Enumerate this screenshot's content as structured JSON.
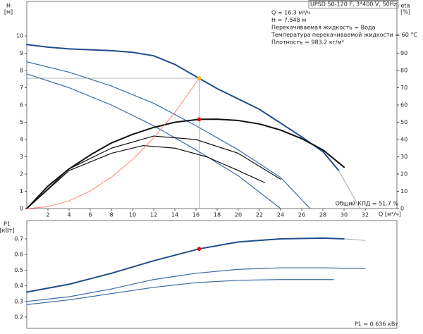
{
  "chart_data": [
    {
      "type": "line",
      "title": "UPSD 50-120 F, 3*400 V, 50Hz",
      "info": [
        "Q = 16.3 м³/ч",
        "H = 7.548 м",
        "Перекачиваемая жидкость = Вода",
        "Температура перекачиваемой жидкости = 60 °C",
        "Плотность = 983.2 кг/м³"
      ],
      "annotation": "Общий КПД = 51.7 %",
      "ylabel": [
        "H",
        "[м]"
      ],
      "y2label": [
        "eta",
        "[%]"
      ],
      "xlabel": "Q [м³/ч]",
      "xlim": [
        0,
        35
      ],
      "xticks": [
        2,
        4,
        6,
        8,
        10,
        12,
        14,
        16,
        18,
        20,
        22,
        24,
        26,
        28,
        30,
        32
      ],
      "ylim": [
        0,
        12
      ],
      "yticks": [
        0,
        1,
        2,
        3,
        4,
        5,
        6,
        7,
        8,
        9,
        10
      ],
      "y2lim": [
        0,
        120
      ],
      "y2ticks": [
        0,
        10,
        20,
        30,
        40,
        50,
        60,
        70,
        80,
        90
      ],
      "grid": false,
      "series": [
        {
          "color": "#1f4e8c",
          "width": 2,
          "x": [
            0,
            2,
            4,
            6,
            8,
            10,
            12,
            14,
            16.3,
            18,
            20,
            22,
            24,
            26,
            28,
            29.5
          ],
          "values": [
            9.5,
            9.35,
            9.25,
            9.2,
            9.15,
            9.05,
            8.85,
            8.35,
            7.548,
            6.95,
            6.35,
            5.75,
            4.95,
            4.15,
            3.3,
            2.2
          ]
        },
        {
          "color": "#9aa8bb",
          "width": 1,
          "x": [
            29.5,
            30.5,
            31.5
          ],
          "values": [
            2.2,
            1.1,
            0
          ]
        },
        {
          "color": "#3a6aa5",
          "width": 1.2,
          "x": [
            0,
            4,
            8,
            12,
            16,
            20,
            24,
            26.8
          ],
          "values": [
            8.5,
            7.9,
            7.1,
            6.1,
            4.8,
            3.4,
            1.8,
            0
          ]
        },
        {
          "color": "#3a6aa5",
          "width": 1.2,
          "x": [
            0,
            4,
            8,
            12,
            16,
            20,
            24
          ],
          "values": [
            7.8,
            7.0,
            6.0,
            4.8,
            3.4,
            1.9,
            0
          ]
        },
        {
          "color": "#111111",
          "width": 2,
          "axis": "y2",
          "x": [
            0,
            2,
            4,
            6,
            8,
            10,
            12,
            14,
            16.3,
            18,
            20,
            22,
            24,
            26,
            28,
            30
          ],
          "values": [
            0,
            13,
            23,
            31,
            38,
            43,
            47,
            50,
            51.7,
            51.8,
            51,
            49,
            45.5,
            40.5,
            34,
            24
          ]
        },
        {
          "color": "#111111",
          "width": 1.2,
          "axis": "y2",
          "x": [
            0,
            4,
            8,
            12,
            16,
            20,
            24
          ],
          "values": [
            0,
            23,
            35,
            42,
            40,
            32,
            17
          ]
        },
        {
          "color": "#111111",
          "width": 1.2,
          "axis": "y2",
          "x": [
            0,
            4,
            8,
            11,
            14,
            17,
            20,
            22.5
          ],
          "values": [
            0,
            22,
            32,
            36.5,
            35,
            30,
            22,
            15
          ]
        },
        {
          "color": "#ff6a5a",
          "width": 0.8,
          "x": [
            0,
            2,
            4,
            6,
            8,
            10,
            12,
            14,
            16.3
          ],
          "values": [
            0,
            0.11,
            0.45,
            1.02,
            1.82,
            2.84,
            4.09,
            5.57,
            7.548
          ]
        }
      ],
      "markers": [
        {
          "x": 16.3,
          "value": 7.548,
          "color": "#f5b800",
          "guides": true
        },
        {
          "x": 16.3,
          "value": 51.7,
          "color": "#e00000",
          "axis": "y2"
        }
      ]
    },
    {
      "type": "line",
      "annotation": "P1 = 0.636 кВт",
      "ylabel": [
        "P1",
        "[кВт]"
      ],
      "xlim": [
        0,
        35
      ],
      "ylim": [
        0.128,
        0.817
      ],
      "yticks": [
        0.2,
        0.3,
        0.4,
        0.5,
        0.6,
        0.7
      ],
      "grid": false,
      "series": [
        {
          "color": "#1f4e8c",
          "width": 2,
          "x": [
            0,
            4,
            8,
            12,
            16.3,
            20,
            24,
            28,
            30
          ],
          "values": [
            0.36,
            0.41,
            0.48,
            0.56,
            0.636,
            0.68,
            0.7,
            0.705,
            0.7
          ]
        },
        {
          "color": "#9aa8bb",
          "width": 1,
          "x": [
            30,
            32
          ],
          "values": [
            0.7,
            0.69
          ]
        },
        {
          "color": "#3a6aa5",
          "width": 1.2,
          "x": [
            0,
            4,
            8,
            12,
            16,
            20,
            24,
            28,
            32
          ],
          "values": [
            0.3,
            0.33,
            0.38,
            0.44,
            0.48,
            0.505,
            0.515,
            0.515,
            0.51
          ]
        },
        {
          "color": "#3a6aa5",
          "width": 1.2,
          "x": [
            0,
            4,
            8,
            12,
            16,
            20,
            24,
            29
          ],
          "values": [
            0.28,
            0.31,
            0.35,
            0.39,
            0.42,
            0.435,
            0.44,
            0.44
          ]
        }
      ],
      "markers": [
        {
          "x": 16.3,
          "value": 0.636,
          "color": "#e00000"
        }
      ]
    }
  ]
}
